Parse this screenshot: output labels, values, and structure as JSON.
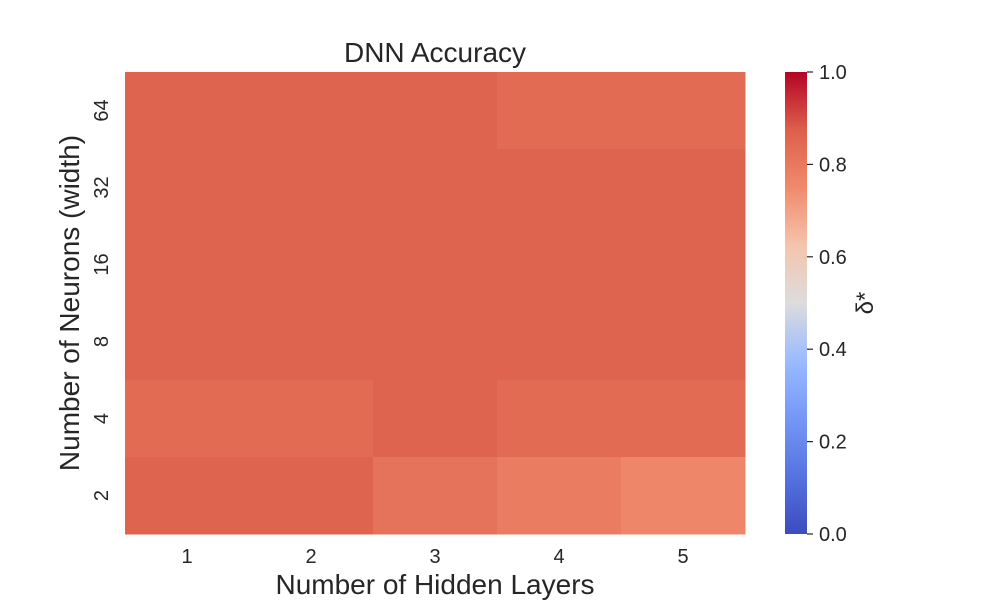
{
  "chart_data": {
    "type": "heatmap",
    "title": "DNN Accuracy",
    "xlabel": "Number of Hidden Layers",
    "ylabel": "Number of Neurons (width)",
    "x_categories": [
      "1",
      "2",
      "3",
      "4",
      "5"
    ],
    "y_categories": [
      "64",
      "32",
      "16",
      "8",
      "4",
      "2"
    ],
    "values": [
      [
        0.86,
        0.86,
        0.86,
        0.84,
        0.84
      ],
      [
        0.86,
        0.86,
        0.86,
        0.86,
        0.86
      ],
      [
        0.86,
        0.86,
        0.86,
        0.86,
        0.86
      ],
      [
        0.86,
        0.86,
        0.86,
        0.86,
        0.86
      ],
      [
        0.84,
        0.84,
        0.86,
        0.84,
        0.84
      ],
      [
        0.86,
        0.86,
        0.82,
        0.79,
        0.76
      ]
    ],
    "colormap": "coolwarm",
    "vmin": 0.0,
    "vmax": 1.0,
    "colorbar": {
      "label": "δ*",
      "ticks": [
        "0.0",
        "0.2",
        "0.4",
        "0.6",
        "0.8",
        "1.0"
      ]
    },
    "grid": false
  }
}
